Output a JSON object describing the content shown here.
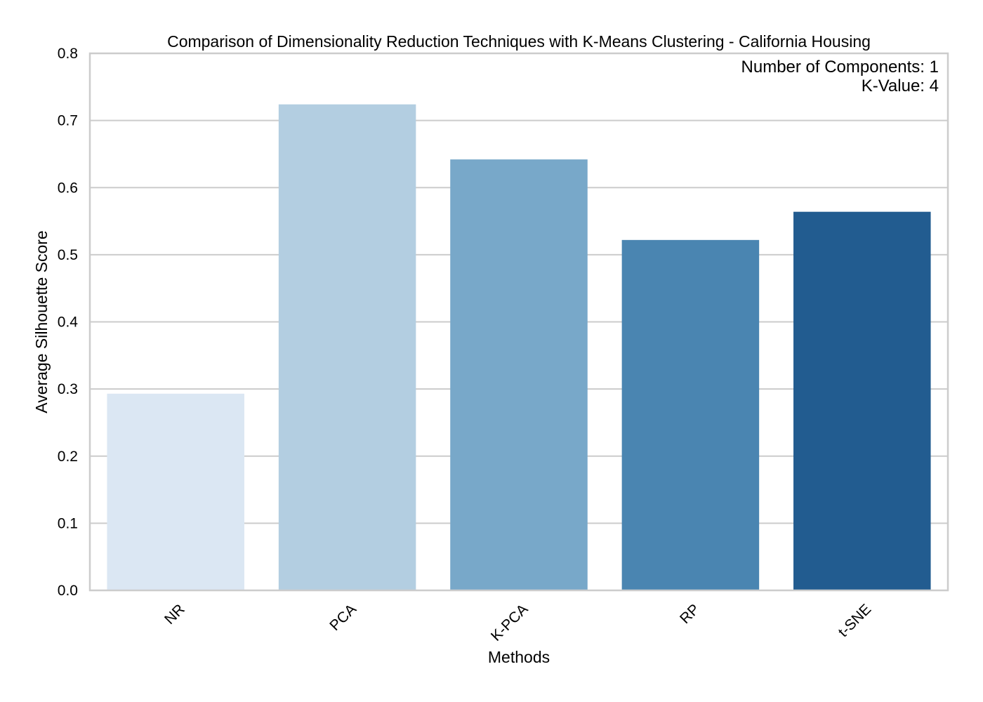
{
  "chart_data": {
    "type": "bar",
    "title": "Comparison of Dimensionality Reduction Techniques with K-Means Clustering - California Housing",
    "xlabel": "Methods",
    "ylabel": "Average Silhouette Score",
    "categories": [
      "NR",
      "PCA",
      "K-PCA",
      "RP",
      "t-SNE"
    ],
    "values": [
      0.293,
      0.724,
      0.642,
      0.522,
      0.564
    ],
    "colors": [
      "#dbe7f3",
      "#b3cee1",
      "#78a8c9",
      "#4a85b1",
      "#225c90"
    ],
    "ylim": [
      0,
      0.8
    ],
    "yticks": [
      "0.0",
      "0.1",
      "0.2",
      "0.3",
      "0.4",
      "0.5",
      "0.6",
      "0.7",
      "0.8"
    ],
    "grid": "horizontal",
    "annotation": [
      "Number of Components: 1",
      "K-Value: 4"
    ],
    "annotation_placement": "top-right",
    "x_tick_rotation_deg": 45,
    "gridline_color": "#cccccc",
    "frame_color": "#cccccc"
  }
}
